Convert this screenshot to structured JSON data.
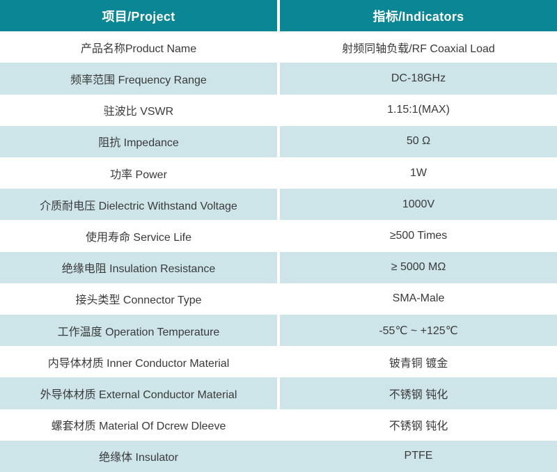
{
  "table": {
    "title": "RF Coaxial Load specification table",
    "colors": {
      "header_bg": "#0b8694",
      "header_text": "#ffffff",
      "alt_row_bg": "#cde5e9",
      "body_text": "#3a3a3a",
      "divider": "#ffffff"
    },
    "header": {
      "project": "项目/Project",
      "indicators": "指标/Indicators"
    },
    "rows": [
      {
        "project": "产品名称Product Name",
        "indicator": "射频同轴负载/RF Coaxial Load"
      },
      {
        "project": "频率范围 Frequency Range",
        "indicator": "DC-18GHz"
      },
      {
        "project": "驻波比 VSWR",
        "indicator": "1.15:1(MAX)"
      },
      {
        "project": "阻抗 Impedance",
        "indicator": "50 Ω"
      },
      {
        "project": "功率 Power",
        "indicator": "1W"
      },
      {
        "project": "介质耐电压 Dielectric Withstand Voltage",
        "indicator": "1000V"
      },
      {
        "project": "使用寿命 Service Life",
        "indicator": "≥500 Times"
      },
      {
        "project": "绝缘电阻 Insulation Resistance",
        "indicator": "≥ 5000 MΩ"
      },
      {
        "project": "接头类型 Connector Type",
        "indicator": "SMA-Male"
      },
      {
        "project": "工作温度 Operation Temperature",
        "indicator": "-55℃ ~ +125℃"
      },
      {
        "project": "内导体材质 Inner Conductor Material",
        "indicator": "铍青铜 镀金"
      },
      {
        "project": "外导体材质 External Conductor Material",
        "indicator": "不锈钢 钝化"
      },
      {
        "project": "螺套材质 Material Of Dcrew Dleeve",
        "indicator": "不锈钢 钝化"
      },
      {
        "project": "绝缘体 Insulator",
        "indicator": "PTFE"
      }
    ]
  }
}
